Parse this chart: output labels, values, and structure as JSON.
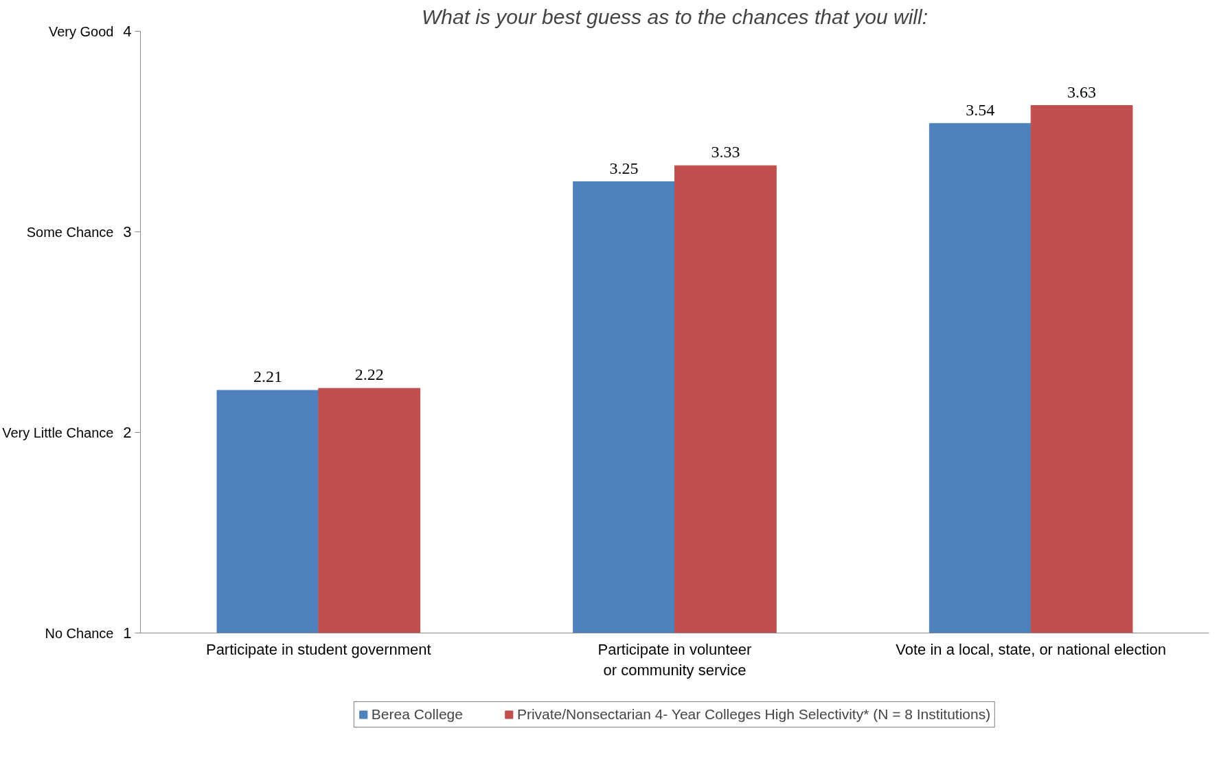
{
  "chart_data": {
    "type": "bar",
    "title": "What is your best guess as to the chances that you will:",
    "categories": [
      "Participate in student government",
      "Participate in volunteer\nor community service",
      "Vote in a local, state, or national election"
    ],
    "series": [
      {
        "name": "Berea College",
        "color": "#4f81bd",
        "values": [
          2.21,
          3.25,
          3.54
        ]
      },
      {
        "name": "Private/Nonsectarian 4- Year Colleges High Selectivity* (N = 8 Institutions)",
        "color": "#c0504d",
        "values": [
          2.22,
          3.33,
          3.63
        ]
      }
    ],
    "ylim": [
      1,
      4
    ],
    "yticks": [
      1,
      2,
      3,
      4
    ],
    "annotations": [
      "No Chance",
      "Very Little Chance",
      "Some Chance",
      "Very Good"
    ],
    "data_labels": true,
    "grid": false,
    "legend": "bottom"
  }
}
